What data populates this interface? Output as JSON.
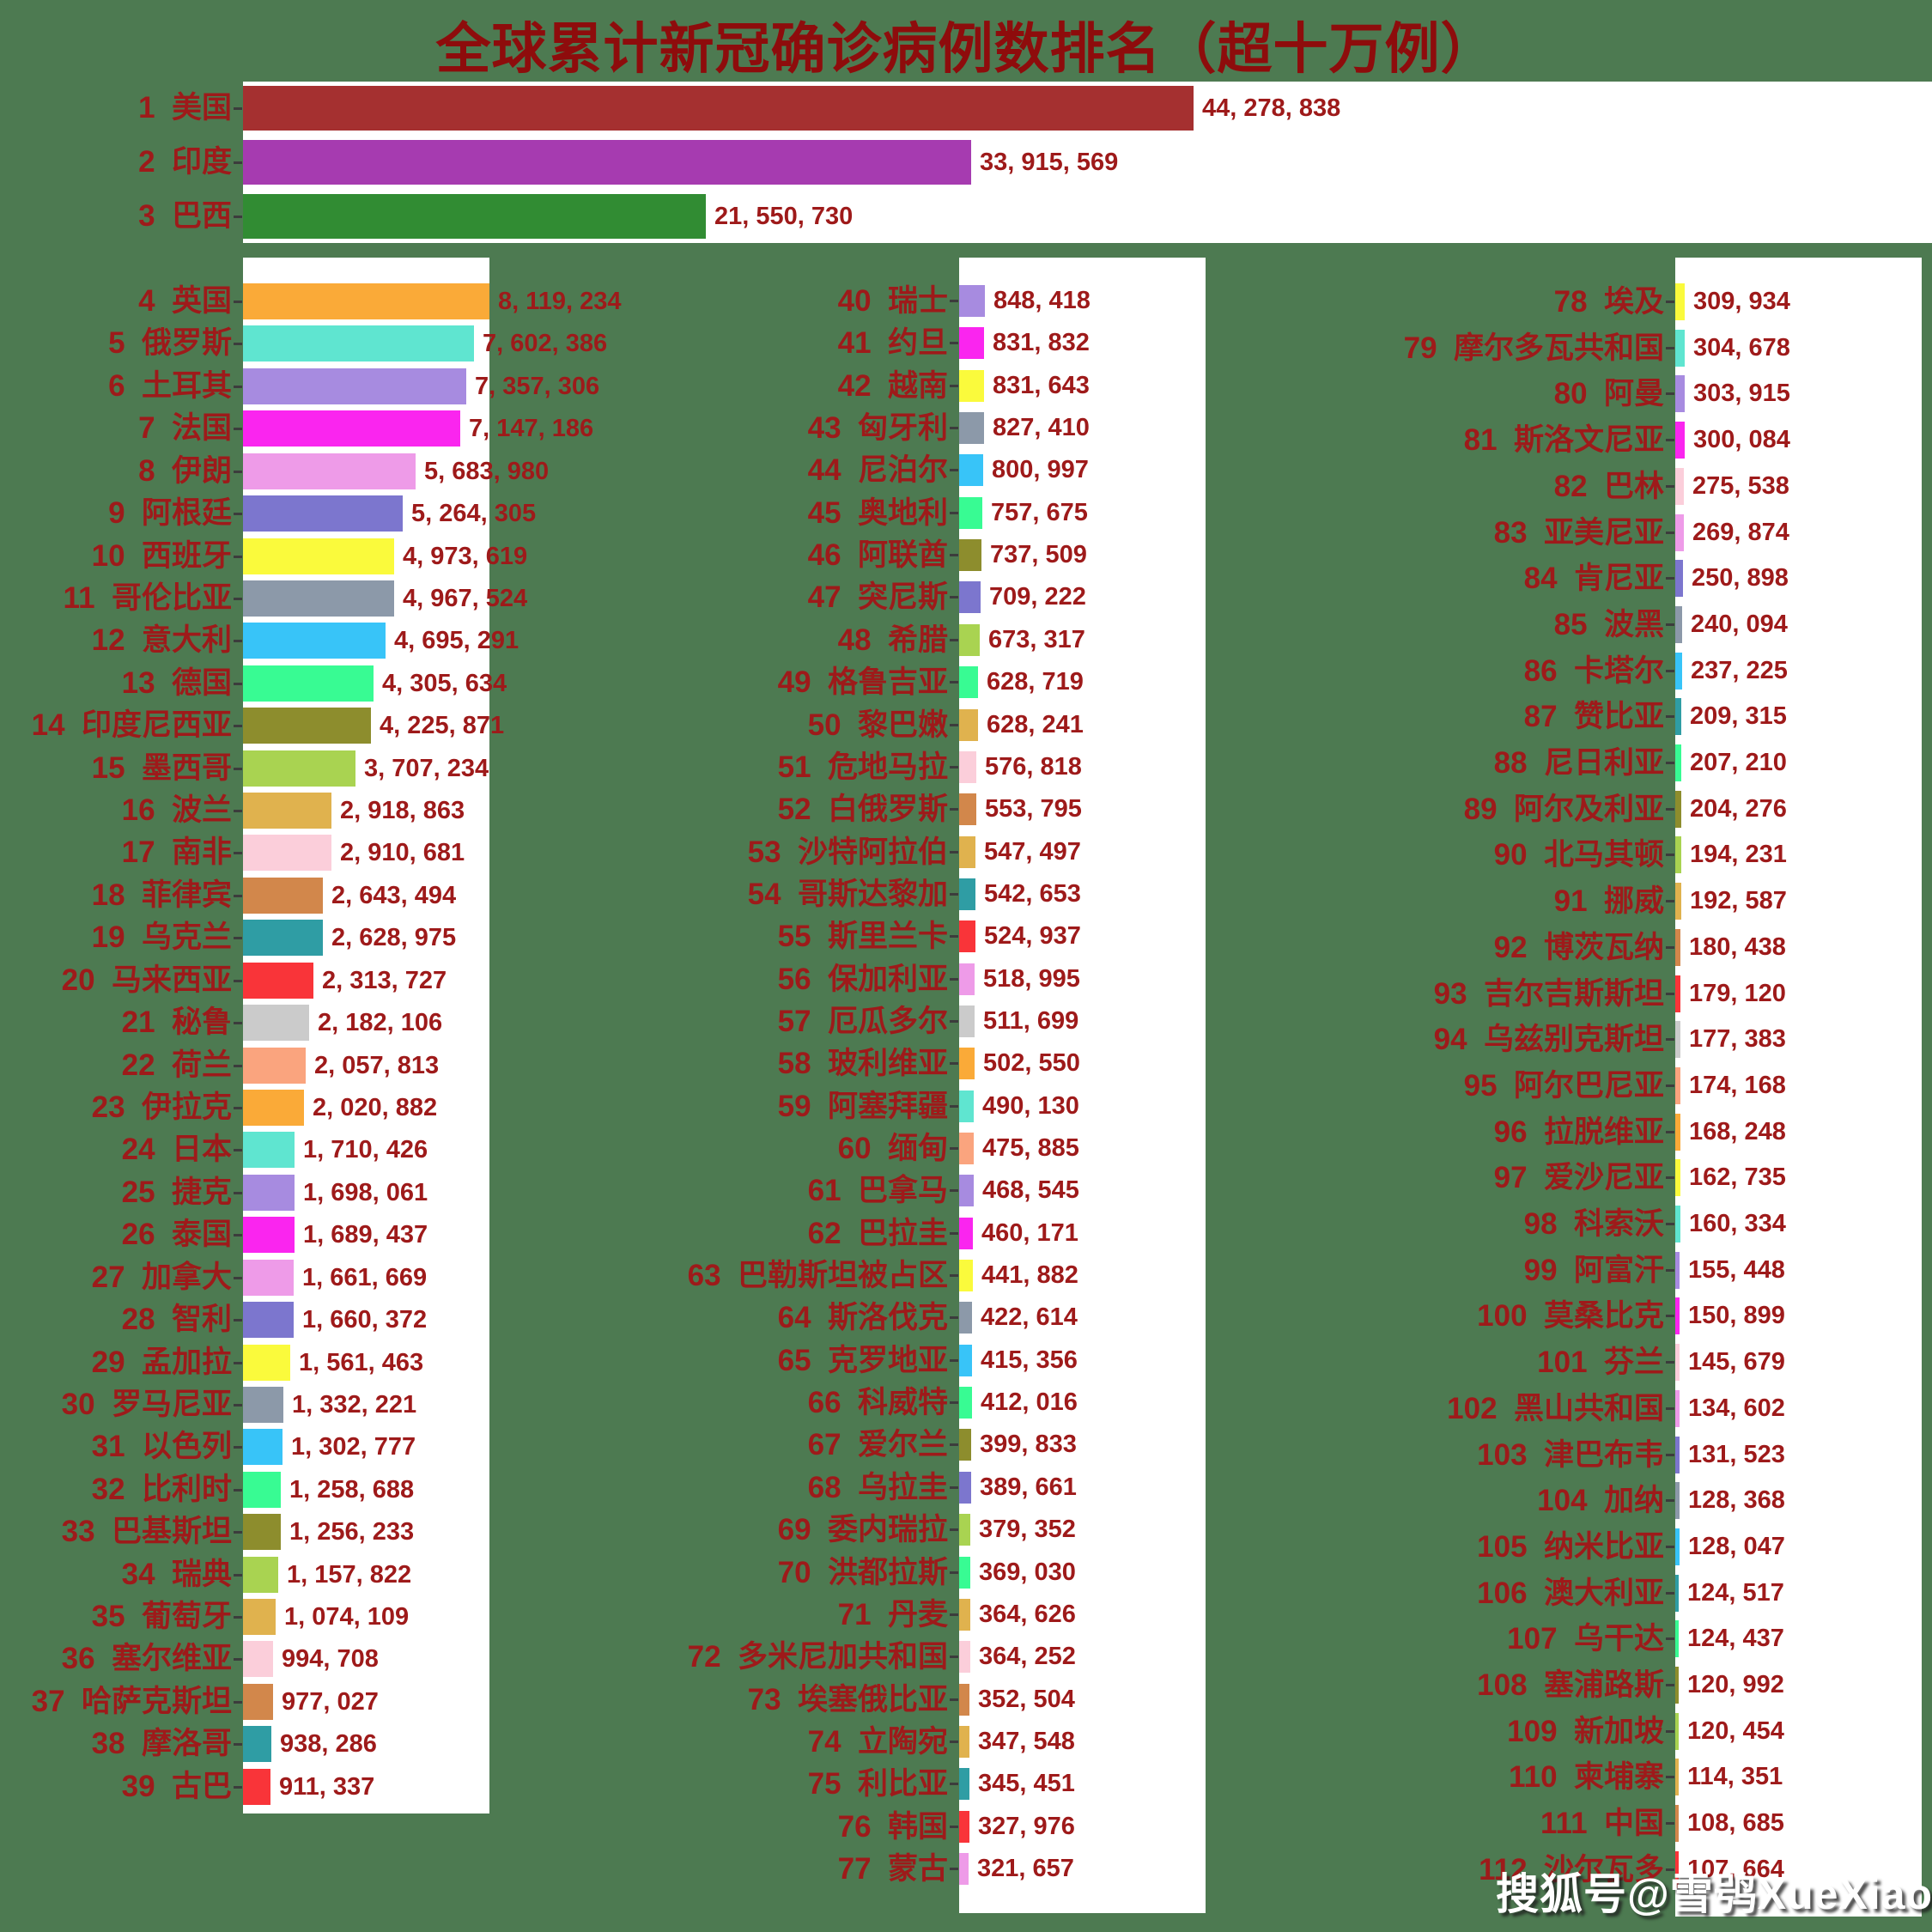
{
  "watermark": "搜狐号@雪鸮XueXiao",
  "colors": {
    "background": "#4D7A51",
    "panel": "#FFFFFF",
    "label_text": "#9E1A1A",
    "title_text": "#8E0C0C",
    "tick": "#3C3C3C",
    "watermark_text": "#FFFFFF"
  },
  "chart_data": {
    "type": "bar",
    "orientation": "horizontal",
    "title": "全球累计新冠确诊病例数排名（超十万例）",
    "x_max": {
      "top_chart": 44278838,
      "columns": 8119234
    },
    "grid": false,
    "legend": false,
    "groups": {
      "top": [
        {
          "rank": 1,
          "name": "美国",
          "value": 44278838,
          "color": "#A53030"
        },
        {
          "rank": 2,
          "name": "印度",
          "value": 33915569,
          "color": "#A63BB0"
        },
        {
          "rank": 3,
          "name": "巴西",
          "value": 21550730,
          "color": "#318C33"
        }
      ],
      "col1": [
        {
          "rank": 4,
          "name": "英国",
          "value": 8119234,
          "color": "#FAAA38"
        },
        {
          "rank": 5,
          "name": "俄罗斯",
          "value": 7602386,
          "color": "#5FE5D0"
        },
        {
          "rank": 6,
          "name": "土耳其",
          "value": 7357306,
          "color": "#A78BE0"
        },
        {
          "rank": 7,
          "name": "法国",
          "value": 7147186,
          "color": "#FA25EF"
        },
        {
          "rank": 8,
          "name": "伊朗",
          "value": 5683980,
          "color": "#EE9BE8"
        },
        {
          "rank": 9,
          "name": "阿根廷",
          "value": 5264305,
          "color": "#7C76CE"
        },
        {
          "rank": 10,
          "name": "西班牙",
          "value": 4973619,
          "color": "#FAFA3C"
        },
        {
          "rank": 11,
          "name": "哥伦比亚",
          "value": 4967524,
          "color": "#8C99A9"
        },
        {
          "rank": 12,
          "name": "意大利",
          "value": 4695291,
          "color": "#38C4F8"
        },
        {
          "rank": 13,
          "name": "德国",
          "value": 4305634,
          "color": "#38FB93"
        },
        {
          "rank": 14,
          "name": "印度尼西亚",
          "value": 4225871,
          "color": "#8D8D2D"
        },
        {
          "rank": 15,
          "name": "墨西哥",
          "value": 3707234,
          "color": "#A9D351"
        },
        {
          "rank": 16,
          "name": "波兰",
          "value": 2918863,
          "color": "#E0B24E"
        },
        {
          "rank": 17,
          "name": "南非",
          "value": 2910681,
          "color": "#FBCEDA"
        },
        {
          "rank": 18,
          "name": "菲律宾",
          "value": 2643494,
          "color": "#D2874B"
        },
        {
          "rank": 19,
          "name": "乌克兰",
          "value": 2628975,
          "color": "#2F9DA4"
        },
        {
          "rank": 20,
          "name": "马来西亚",
          "value": 2313727,
          "color": "#F93439"
        },
        {
          "rank": 21,
          "name": "秘鲁",
          "value": 2182106,
          "color": "#CBCBCB"
        },
        {
          "rank": 22,
          "name": "荷兰",
          "value": 2057813,
          "color": "#FAA47E"
        },
        {
          "rank": 23,
          "name": "伊拉克",
          "value": 2020882,
          "color": "#FAAA38"
        },
        {
          "rank": 24,
          "name": "日本",
          "value": 1710426,
          "color": "#5FE5D0"
        },
        {
          "rank": 25,
          "name": "捷克",
          "value": 1698061,
          "color": "#A78BE0"
        },
        {
          "rank": 26,
          "name": "泰国",
          "value": 1689437,
          "color": "#FA25EF"
        },
        {
          "rank": 27,
          "name": "加拿大",
          "value": 1661669,
          "color": "#EE9BE8"
        },
        {
          "rank": 28,
          "name": "智利",
          "value": 1660372,
          "color": "#7C76CE"
        },
        {
          "rank": 29,
          "name": "孟加拉",
          "value": 1561463,
          "color": "#FAFA3C"
        },
        {
          "rank": 30,
          "name": "罗马尼亚",
          "value": 1332221,
          "color": "#8C99A9"
        },
        {
          "rank": 31,
          "name": "以色列",
          "value": 1302777,
          "color": "#38C4F8"
        },
        {
          "rank": 32,
          "name": "比利时",
          "value": 1258688,
          "color": "#38FB93"
        },
        {
          "rank": 33,
          "name": "巴基斯坦",
          "value": 1256233,
          "color": "#8D8D2D"
        },
        {
          "rank": 34,
          "name": "瑞典",
          "value": 1157822,
          "color": "#A9D351"
        },
        {
          "rank": 35,
          "name": "葡萄牙",
          "value": 1074109,
          "color": "#E0B24E"
        },
        {
          "rank": 36,
          "name": "塞尔维亚",
          "value": 994708,
          "color": "#FBCEDA"
        },
        {
          "rank": 37,
          "name": "哈萨克斯坦",
          "value": 977027,
          "color": "#D2874B"
        },
        {
          "rank": 38,
          "name": "摩洛哥",
          "value": 938286,
          "color": "#2F9DA4"
        },
        {
          "rank": 39,
          "name": "古巴",
          "value": 911337,
          "color": "#F93439"
        }
      ],
      "col2": [
        {
          "rank": 40,
          "name": "瑞士",
          "value": 848418,
          "color": "#A78BE0"
        },
        {
          "rank": 41,
          "name": "约旦",
          "value": 831832,
          "color": "#FA25EF"
        },
        {
          "rank": 42,
          "name": "越南",
          "value": 831643,
          "color": "#FAFA3C"
        },
        {
          "rank": 43,
          "name": "匈牙利",
          "value": 827410,
          "color": "#8C99A9"
        },
        {
          "rank": 44,
          "name": "尼泊尔",
          "value": 800997,
          "color": "#38C4F8"
        },
        {
          "rank": 45,
          "name": "奥地利",
          "value": 757675,
          "color": "#38FB93"
        },
        {
          "rank": 46,
          "name": "阿联酋",
          "value": 737509,
          "color": "#8D8D2D"
        },
        {
          "rank": 47,
          "name": "突尼斯",
          "value": 709222,
          "color": "#7C76CE"
        },
        {
          "rank": 48,
          "name": "希腊",
          "value": 673317,
          "color": "#A9D351"
        },
        {
          "rank": 49,
          "name": "格鲁吉亚",
          "value": 628719,
          "color": "#38FB93"
        },
        {
          "rank": 50,
          "name": "黎巴嫩",
          "value": 628241,
          "color": "#E0B24E"
        },
        {
          "rank": 51,
          "name": "危地马拉",
          "value": 576818,
          "color": "#FBCEDA"
        },
        {
          "rank": 52,
          "name": "白俄罗斯",
          "value": 553795,
          "color": "#D2874B"
        },
        {
          "rank": 53,
          "name": "沙特阿拉伯",
          "value": 547497,
          "color": "#E0B24E"
        },
        {
          "rank": 54,
          "name": "哥斯达黎加",
          "value": 542653,
          "color": "#2F9DA4"
        },
        {
          "rank": 55,
          "name": "斯里兰卡",
          "value": 524937,
          "color": "#F93439"
        },
        {
          "rank": 56,
          "name": "保加利亚",
          "value": 518995,
          "color": "#EE9BE8"
        },
        {
          "rank": 57,
          "name": "厄瓜多尔",
          "value": 511699,
          "color": "#CBCBCB"
        },
        {
          "rank": 58,
          "name": "玻利维亚",
          "value": 502550,
          "color": "#FAAA38"
        },
        {
          "rank": 59,
          "name": "阿塞拜疆",
          "value": 490130,
          "color": "#5FE5D0"
        },
        {
          "rank": 60,
          "name": "缅甸",
          "value": 475885,
          "color": "#FAA47E"
        },
        {
          "rank": 61,
          "name": "巴拿马",
          "value": 468545,
          "color": "#A78BE0"
        },
        {
          "rank": 62,
          "name": "巴拉圭",
          "value": 460171,
          "color": "#FA25EF"
        },
        {
          "rank": 63,
          "name": "巴勒斯坦被占区",
          "value": 441882,
          "color": "#FAFA3C"
        },
        {
          "rank": 64,
          "name": "斯洛伐克",
          "value": 422614,
          "color": "#8C99A9"
        },
        {
          "rank": 65,
          "name": "克罗地亚",
          "value": 415356,
          "color": "#38C4F8"
        },
        {
          "rank": 66,
          "name": "科威特",
          "value": 412016,
          "color": "#38FB93"
        },
        {
          "rank": 67,
          "name": "爱尔兰",
          "value": 399833,
          "color": "#8D8D2D"
        },
        {
          "rank": 68,
          "name": "乌拉圭",
          "value": 389661,
          "color": "#7C76CE"
        },
        {
          "rank": 69,
          "name": "委内瑞拉",
          "value": 379352,
          "color": "#A9D351"
        },
        {
          "rank": 70,
          "name": "洪都拉斯",
          "value": 369030,
          "color": "#38FB93"
        },
        {
          "rank": 71,
          "name": "丹麦",
          "value": 364626,
          "color": "#E0B24E"
        },
        {
          "rank": 72,
          "name": "多米尼加共和国",
          "value": 364252,
          "color": "#FBCEDA"
        },
        {
          "rank": 73,
          "name": "埃塞俄比亚",
          "value": 352504,
          "color": "#D2874B"
        },
        {
          "rank": 74,
          "name": "立陶宛",
          "value": 347548,
          "color": "#E0B24E"
        },
        {
          "rank": 75,
          "name": "利比亚",
          "value": 345451,
          "color": "#2F9DA4"
        },
        {
          "rank": 76,
          "name": "韩国",
          "value": 327976,
          "color": "#F93439"
        },
        {
          "rank": 77,
          "name": "蒙古",
          "value": 321657,
          "color": "#EE9BE8"
        }
      ],
      "col3": [
        {
          "rank": 78,
          "name": "埃及",
          "value": 309934,
          "color": "#FAFA3C"
        },
        {
          "rank": 79,
          "name": "摩尔多瓦共和国",
          "value": 304678,
          "color": "#5FE5D0"
        },
        {
          "rank": 80,
          "name": "阿曼",
          "value": 303915,
          "color": "#A78BE0"
        },
        {
          "rank": 81,
          "name": "斯洛文尼亚",
          "value": 300084,
          "color": "#FA25EF"
        },
        {
          "rank": 82,
          "name": "巴林",
          "value": 275538,
          "color": "#FBCEDA"
        },
        {
          "rank": 83,
          "name": "亚美尼亚",
          "value": 269874,
          "color": "#EE9BE8"
        },
        {
          "rank": 84,
          "name": "肯尼亚",
          "value": 250898,
          "color": "#7C76CE"
        },
        {
          "rank": 85,
          "name": "波黑",
          "value": 240094,
          "color": "#8C99A9"
        },
        {
          "rank": 86,
          "name": "卡塔尔",
          "value": 237225,
          "color": "#38C4F8"
        },
        {
          "rank": 87,
          "name": "赞比亚",
          "value": 209315,
          "color": "#2F9DA4"
        },
        {
          "rank": 88,
          "name": "尼日利亚",
          "value": 207210,
          "color": "#38FB93"
        },
        {
          "rank": 89,
          "name": "阿尔及利亚",
          "value": 204276,
          "color": "#8D8D2D"
        },
        {
          "rank": 90,
          "name": "北马其顿",
          "value": 194231,
          "color": "#A9D351"
        },
        {
          "rank": 91,
          "name": "挪威",
          "value": 192587,
          "color": "#E0B24E"
        },
        {
          "rank": 92,
          "name": "博茨瓦纳",
          "value": 180438,
          "color": "#D2874B"
        },
        {
          "rank": 93,
          "name": "吉尔吉斯斯坦",
          "value": 179120,
          "color": "#F93439"
        },
        {
          "rank": 94,
          "name": "乌兹别克斯坦",
          "value": 177383,
          "color": "#CBCBCB"
        },
        {
          "rank": 95,
          "name": "阿尔巴尼亚",
          "value": 174168,
          "color": "#FAA47E"
        },
        {
          "rank": 96,
          "name": "拉脱维亚",
          "value": 168248,
          "color": "#FAAA38"
        },
        {
          "rank": 97,
          "name": "爱沙尼亚",
          "value": 162735,
          "color": "#FAFA3C"
        },
        {
          "rank": 98,
          "name": "科索沃",
          "value": 160334,
          "color": "#5FE5D0"
        },
        {
          "rank": 99,
          "name": "阿富汗",
          "value": 155448,
          "color": "#A78BE0"
        },
        {
          "rank": 100,
          "name": "莫桑比克",
          "value": 150899,
          "color": "#FA25EF"
        },
        {
          "rank": 101,
          "name": "芬兰",
          "value": 145679,
          "color": "#FBCEDA"
        },
        {
          "rank": 102,
          "name": "黑山共和国",
          "value": 134602,
          "color": "#EE9BE8"
        },
        {
          "rank": 103,
          "name": "津巴布韦",
          "value": 131523,
          "color": "#7C76CE"
        },
        {
          "rank": 104,
          "name": "加纳",
          "value": 128368,
          "color": "#8C99A9"
        },
        {
          "rank": 105,
          "name": "纳米比亚",
          "value": 128047,
          "color": "#38C4F8"
        },
        {
          "rank": 106,
          "name": "澳大利亚",
          "value": 124517,
          "color": "#2F9DA4"
        },
        {
          "rank": 107,
          "name": "乌干达",
          "value": 124437,
          "color": "#38FB93"
        },
        {
          "rank": 108,
          "name": "塞浦路斯",
          "value": 120992,
          "color": "#8D8D2D"
        },
        {
          "rank": 109,
          "name": "新加坡",
          "value": 120454,
          "color": "#A9D351"
        },
        {
          "rank": 110,
          "name": "柬埔寨",
          "value": 114351,
          "color": "#E0B24E"
        },
        {
          "rank": 111,
          "name": "中国",
          "value": 108685,
          "color": "#D2874B"
        },
        {
          "rank": 112,
          "name": "沙尔瓦多",
          "value": 107664,
          "color": "#F93439"
        }
      ]
    }
  }
}
